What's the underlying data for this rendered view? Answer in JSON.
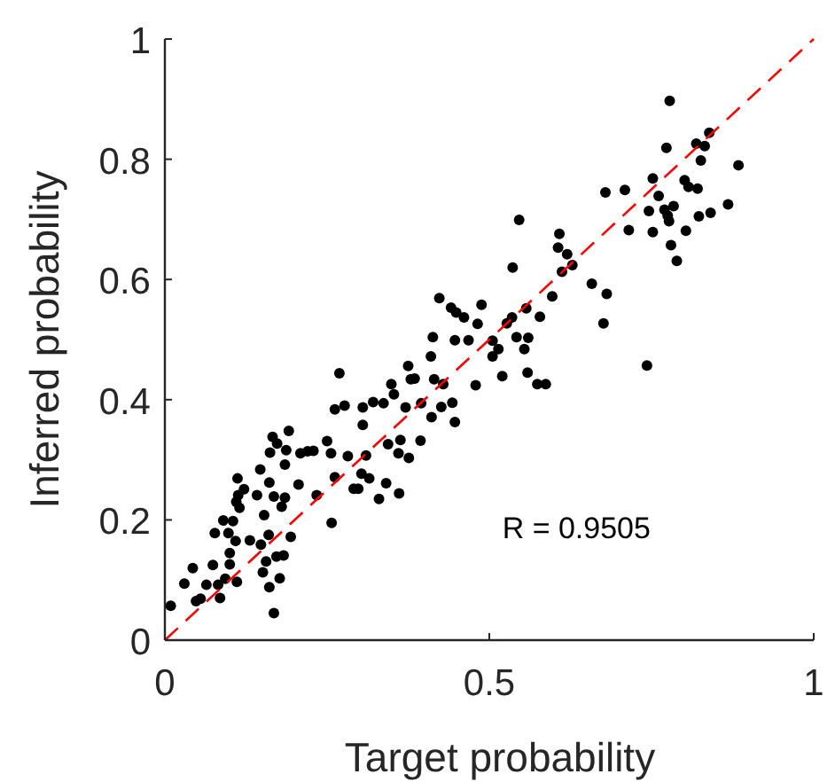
{
  "chart_data": {
    "type": "scatter",
    "xlabel": "Target probability",
    "ylabel": "Inferred probability",
    "xlim": [
      0,
      1
    ],
    "ylim": [
      0,
      1
    ],
    "xticks": [
      0,
      0.5,
      1
    ],
    "yticks": [
      0,
      0.2,
      0.4,
      0.6,
      0.8,
      1
    ],
    "grid": false,
    "annotations": [
      "R = 0.9505"
    ],
    "series": [
      {
        "color": "#000000",
        "marker": "circle",
        "x": [
          0.009,
          0.03,
          0.043,
          0.048,
          0.055,
          0.064,
          0.074,
          0.077,
          0.082,
          0.085,
          0.093,
          0.09,
          0.098,
          0.1,
          0.1,
          0.105,
          0.109,
          0.111,
          0.112,
          0.11,
          0.115,
          0.122,
          0.113,
          0.131,
          0.142,
          0.147,
          0.148,
          0.151,
          0.153,
          0.156,
          0.16,
          0.161,
          0.161,
          0.162,
          0.166,
          0.168,
          0.168,
          0.172,
          0.173,
          0.177,
          0.18,
          0.183,
          0.185,
          0.185,
          0.187,
          0.191,
          0.194,
          0.206,
          0.209,
          0.22,
          0.229,
          0.234,
          0.25,
          0.256,
          0.257,
          0.262,
          0.262,
          0.269,
          0.277,
          0.282,
          0.291,
          0.298,
          0.303,
          0.305,
          0.305,
          0.31,
          0.315,
          0.321,
          0.33,
          0.337,
          0.341,
          0.344,
          0.349,
          0.353,
          0.36,
          0.361,
          0.363,
          0.371,
          0.375,
          0.376,
          0.379,
          0.385,
          0.394,
          0.395,
          0.41,
          0.411,
          0.413,
          0.415,
          0.423,
          0.426,
          0.429,
          0.441,
          0.443,
          0.447,
          0.447,
          0.449,
          0.461,
          0.468,
          0.479,
          0.482,
          0.488,
          0.505,
          0.505,
          0.514,
          0.52,
          0.527,
          0.535,
          0.536,
          0.542,
          0.546,
          0.554,
          0.557,
          0.559,
          0.56,
          0.574,
          0.578,
          0.587,
          0.597,
          0.606,
          0.608,
          0.612,
          0.62,
          0.628,
          0.658,
          0.676,
          0.681,
          0.679,
          0.709,
          0.715,
          0.743,
          0.746,
          0.752,
          0.752,
          0.761,
          0.77,
          0.773,
          0.775,
          0.777,
          0.778,
          0.78,
          0.784,
          0.789,
          0.801,
          0.803,
          0.807,
          0.821,
          0.823,
          0.819,
          0.826,
          0.832,
          0.839,
          0.841,
          0.868,
          0.884
        ],
        "values": [
          0.057,
          0.094,
          0.12,
          0.065,
          0.069,
          0.092,
          0.125,
          0.178,
          0.092,
          0.07,
          0.102,
          0.199,
          0.178,
          0.145,
          0.126,
          0.198,
          0.165,
          0.097,
          0.269,
          0.23,
          0.22,
          0.251,
          0.241,
          0.166,
          0.241,
          0.284,
          0.159,
          0.113,
          0.208,
          0.131,
          0.175,
          0.088,
          0.262,
          0.312,
          0.338,
          0.045,
          0.239,
          0.139,
          0.327,
          0.103,
          0.222,
          0.141,
          0.237,
          0.292,
          0.316,
          0.348,
          0.172,
          0.259,
          0.311,
          0.314,
          0.315,
          0.241,
          0.331,
          0.311,
          0.195,
          0.271,
          0.384,
          0.444,
          0.39,
          0.306,
          0.252,
          0.252,
          0.277,
          0.358,
          0.387,
          0.307,
          0.269,
          0.396,
          0.235,
          0.394,
          0.261,
          0.326,
          0.426,
          0.409,
          0.311,
          0.244,
          0.333,
          0.387,
          0.456,
          0.303,
          0.434,
          0.435,
          0.332,
          0.394,
          0.472,
          0.371,
          0.504,
          0.434,
          0.569,
          0.388,
          0.426,
          0.553,
          0.395,
          0.363,
          0.499,
          0.545,
          0.537,
          0.499,
          0.424,
          0.526,
          0.558,
          0.498,
          0.472,
          0.484,
          0.439,
          0.527,
          0.537,
          0.62,
          0.504,
          0.699,
          0.484,
          0.552,
          0.445,
          0.503,
          0.426,
          0.538,
          0.426,
          0.572,
          0.653,
          0.676,
          0.613,
          0.642,
          0.624,
          0.593,
          0.527,
          0.576,
          0.745,
          0.749,
          0.682,
          0.457,
          0.714,
          0.679,
          0.768,
          0.739,
          0.716,
          0.819,
          0.706,
          0.697,
          0.897,
          0.657,
          0.722,
          0.631,
          0.765,
          0.681,
          0.754,
          0.751,
          0.705,
          0.826,
          0.798,
          0.822,
          0.844,
          0.711,
          0.725,
          0.79
        ]
      },
      {
        "type": "line",
        "color": "#ff0000",
        "line_style": "dashed",
        "marker": "none",
        "x": [
          0,
          1
        ],
        "values": [
          0,
          1
        ]
      }
    ]
  }
}
